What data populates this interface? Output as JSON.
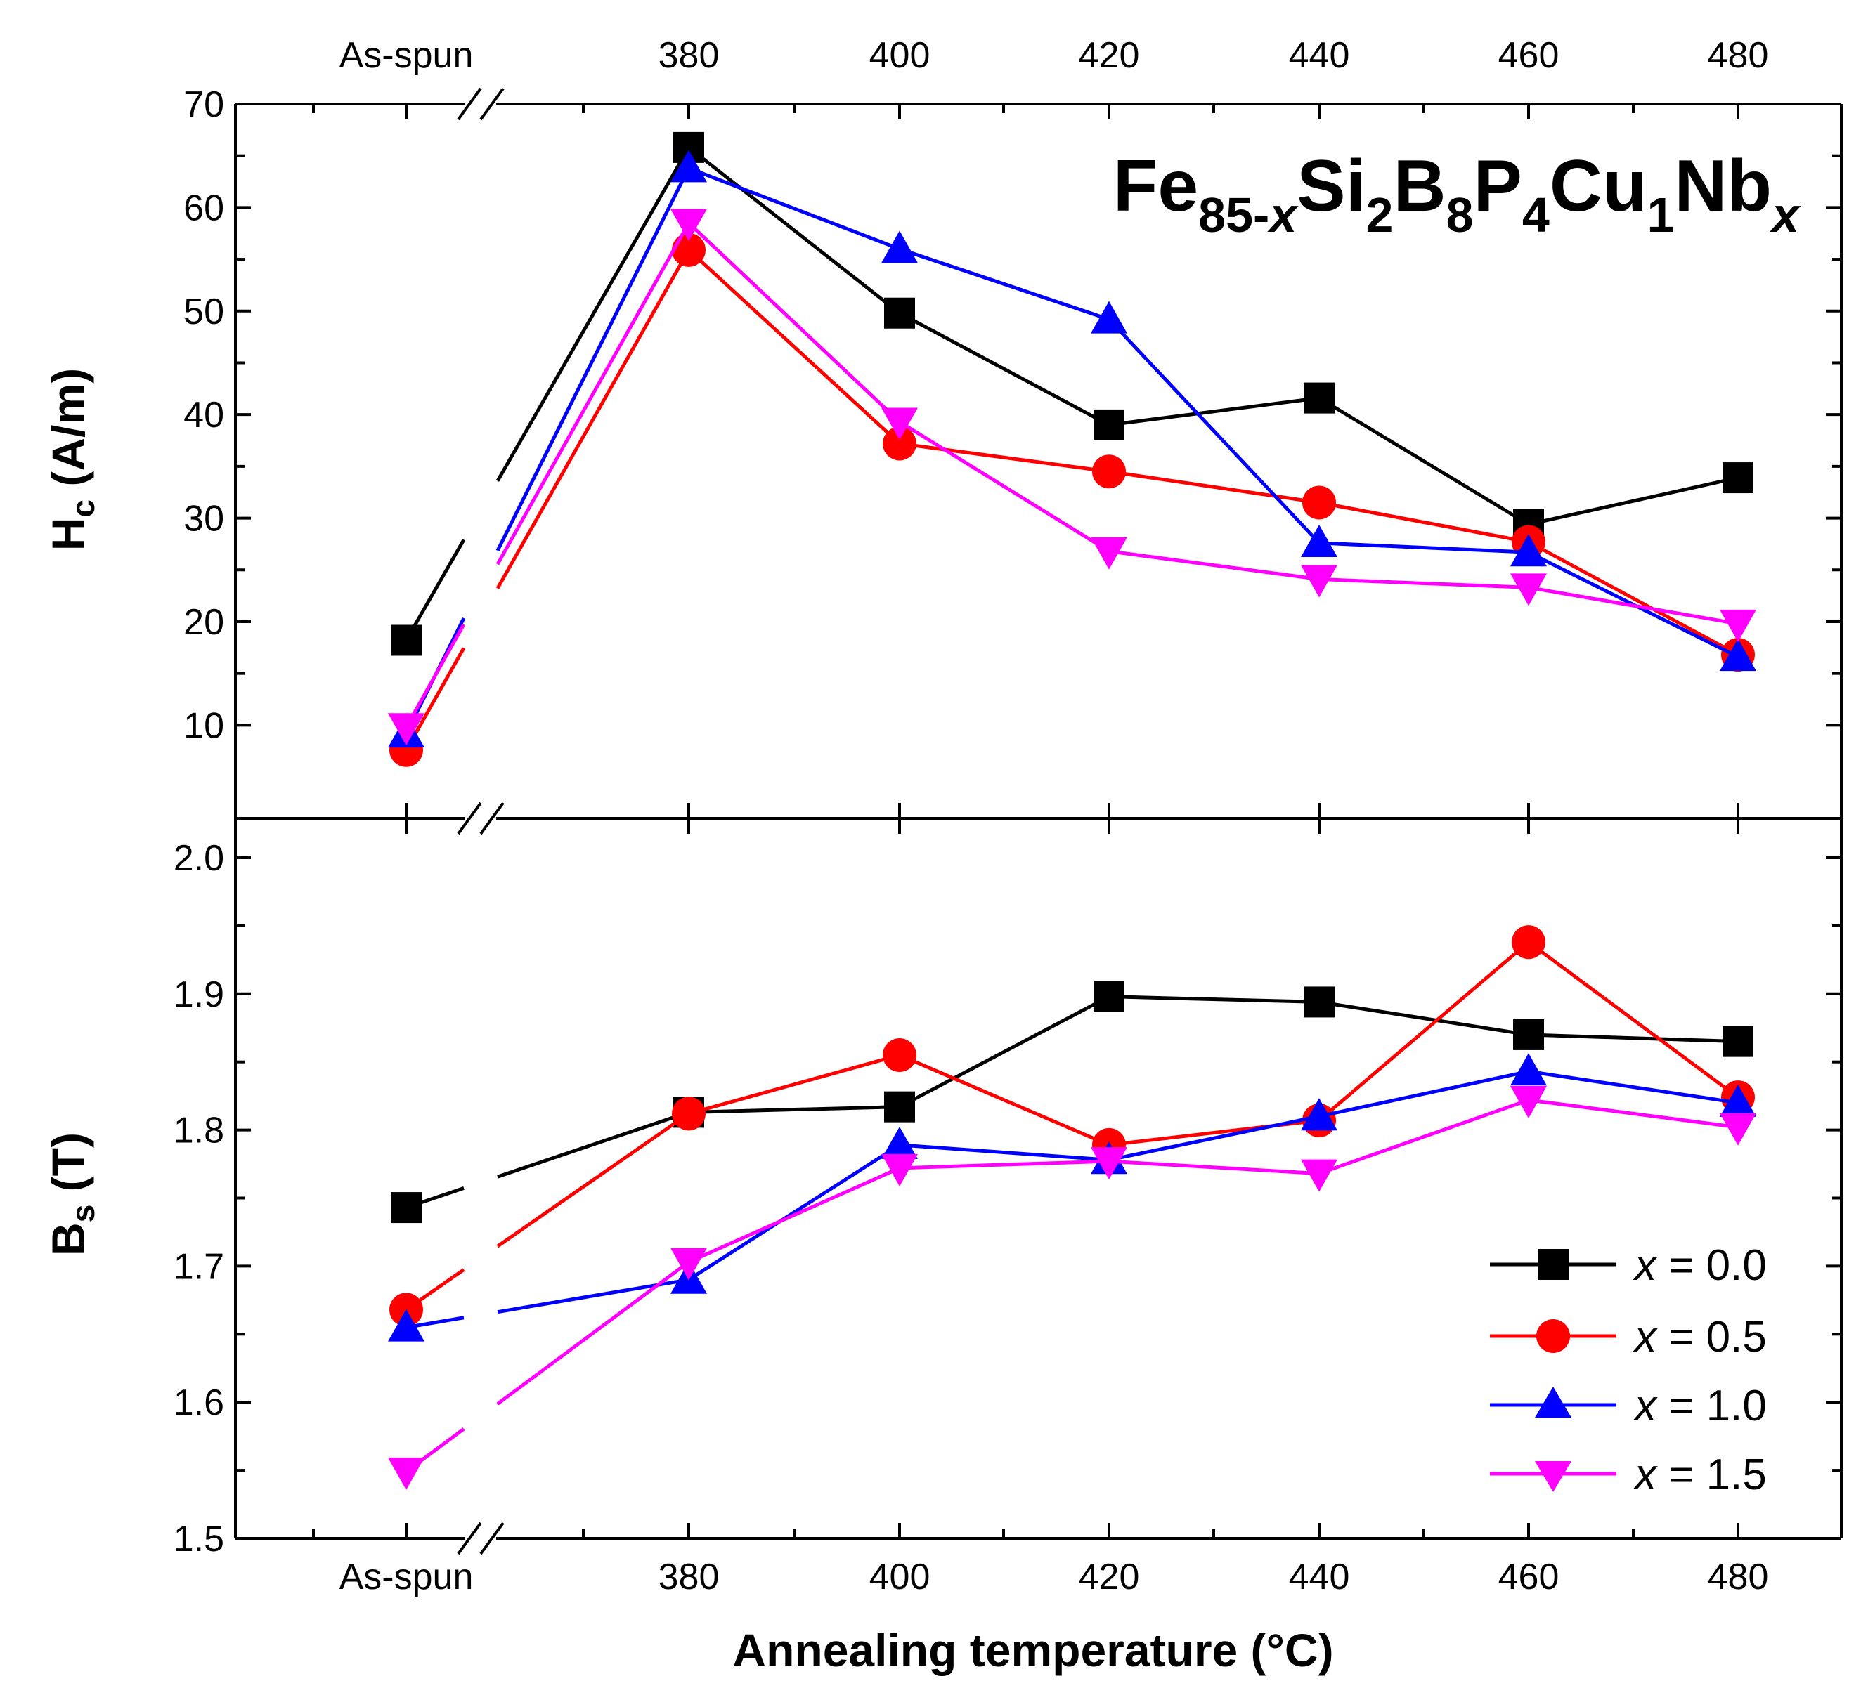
{
  "chart_data": {
    "type": "line",
    "title": "",
    "xlabel": "Annealing temperature (°C)",
    "categories": [
      "As-spun",
      "380",
      "400",
      "420",
      "440",
      "460",
      "480"
    ],
    "x_note": "axis broken between As-spun and 380",
    "formula": {
      "base": "Fe",
      "sub1": "85-",
      "sub1_italic": "x",
      "p2": "Si",
      "s2": "2",
      "p3": "B",
      "s3": "8",
      "p4": "P",
      "s4": "4",
      "p5": "Cu",
      "s5": "1",
      "p6": "Nb",
      "s6_italic": "x"
    },
    "legend": [
      {
        "prefix": "x",
        "text": " = 0.0"
      },
      {
        "prefix": "x",
        "text": " = 0.5"
      },
      {
        "prefix": "x",
        "text": " = 1.0"
      },
      {
        "prefix": "x",
        "text": " = 1.5"
      }
    ],
    "panels": [
      {
        "id": "top",
        "ylabel_main": "H",
        "ylabel_sub": "c",
        "ylabel_rest": " (A/m)",
        "ylim": [
          1,
          70
        ],
        "yticks": [
          "10",
          "20",
          "30",
          "40",
          "50",
          "60",
          "70"
        ],
        "series": [
          {
            "name": "x = 0.0",
            "color": "#000000",
            "marker": "square",
            "values": [
              18.2,
              65.8,
              49.8,
              39.0,
              41.6,
              29.4,
              33.9
            ]
          },
          {
            "name": "x = 0.5",
            "color": "#ff0000",
            "marker": "circle",
            "values": [
              7.6,
              55.9,
              37.2,
              34.5,
              31.5,
              27.7,
              16.8
            ]
          },
          {
            "name": "x = 1.0",
            "color": "#0000ff",
            "marker": "triangle-up",
            "values": [
              9.2,
              63.8,
              56.0,
              49.2,
              27.6,
              26.7,
              16.6
            ]
          },
          {
            "name": "x = 1.5",
            "color": "#ff00ff",
            "marker": "triangle-down",
            "values": [
              9.8,
              58.5,
              39.3,
              26.8,
              24.1,
              23.3,
              19.8
            ]
          }
        ]
      },
      {
        "id": "bottom",
        "ylabel_main": "B",
        "ylabel_sub": "s",
        "ylabel_rest": " (T)",
        "ylim": [
          1.5,
          2.03
        ],
        "yticks": [
          "1.5",
          "1.6",
          "1.7",
          "1.8",
          "1.9",
          "2.0"
        ],
        "series": [
          {
            "name": "x = 0.0",
            "color": "#000000",
            "marker": "square",
            "values": [
              1.743,
              1.813,
              1.817,
              1.898,
              1.894,
              1.87,
              1.865
            ]
          },
          {
            "name": "x = 0.5",
            "color": "#ff0000",
            "marker": "circle",
            "values": [
              1.668,
              1.812,
              1.855,
              1.789,
              1.807,
              1.938,
              1.824
            ]
          },
          {
            "name": "x = 1.0",
            "color": "#0000ff",
            "marker": "triangle-up",
            "values": [
              1.655,
              1.69,
              1.789,
              1.778,
              1.81,
              1.843,
              1.82
            ]
          },
          {
            "name": "x = 1.5",
            "color": "#ff00ff",
            "marker": "triangle-down",
            "values": [
              1.549,
              1.703,
              1.772,
              1.777,
              1.768,
              1.822,
              1.802
            ]
          }
        ]
      }
    ]
  }
}
